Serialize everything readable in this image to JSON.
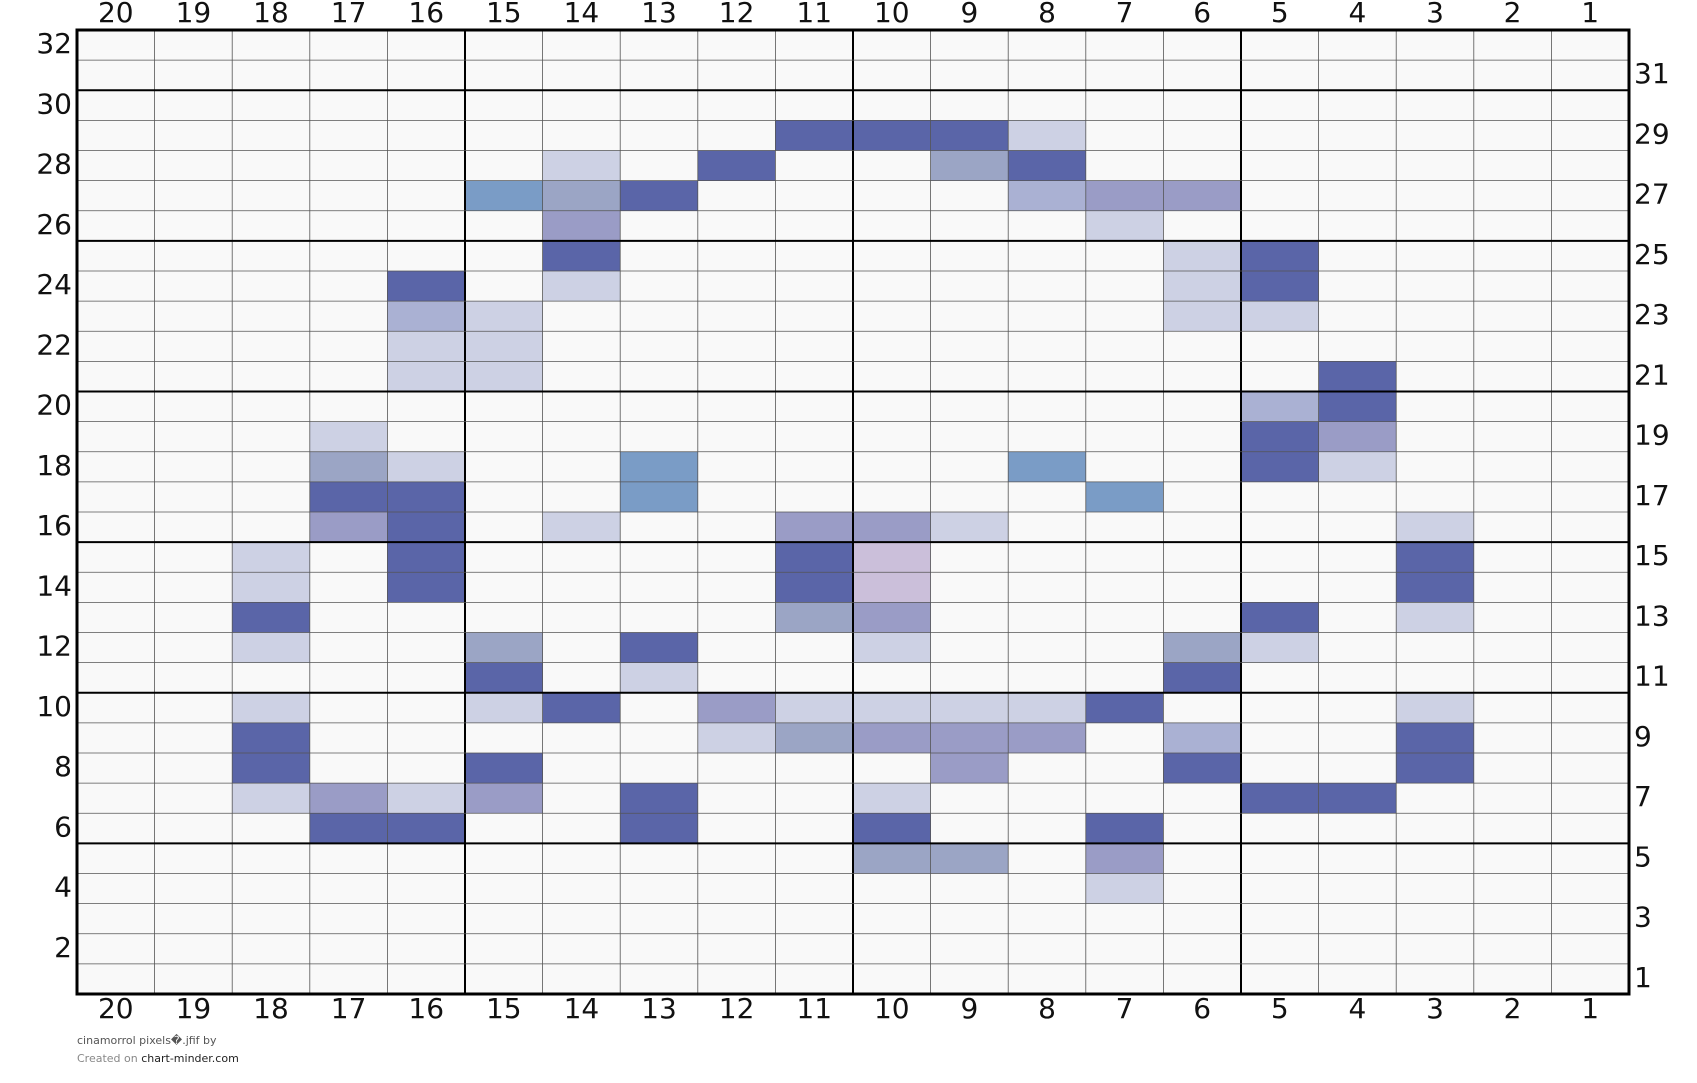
{
  "grid": {
    "columns": [
      20,
      19,
      18,
      17,
      16,
      15,
      14,
      13,
      12,
      11,
      10,
      9,
      8,
      7,
      6,
      5,
      4,
      3,
      2,
      1
    ],
    "rows": [
      32,
      31,
      30,
      29,
      28,
      27,
      26,
      25,
      24,
      23,
      22,
      21,
      20,
      19,
      18,
      17,
      16,
      15,
      14,
      13,
      12,
      11,
      10,
      9,
      8,
      7,
      6,
      5,
      4,
      3,
      2,
      1
    ],
    "left_row_labels": [
      32,
      30,
      28,
      26,
      24,
      22,
      20,
      18,
      16,
      14,
      12,
      10,
      8,
      6,
      4,
      2
    ],
    "right_row_labels": [
      31,
      29,
      27,
      25,
      23,
      21,
      19,
      17,
      15,
      13,
      11,
      9,
      7,
      5,
      3,
      1
    ],
    "background": "#f9f9f9",
    "cells": [
      {
        "row": 29,
        "column": 11,
        "color": "#5a65a8"
      },
      {
        "row": 29,
        "column": 10,
        "color": "#5a65a8"
      },
      {
        "row": 29,
        "column": 9,
        "color": "#5a65a8"
      },
      {
        "row": 29,
        "column": 8,
        "color": "#cdd1e4"
      },
      {
        "row": 28,
        "column": 14,
        "color": "#cdd1e4"
      },
      {
        "row": 28,
        "column": 12,
        "color": "#5a65a8"
      },
      {
        "row": 28,
        "column": 9,
        "color": "#9ba5c5"
      },
      {
        "row": 28,
        "column": 8,
        "color": "#5a65a8"
      },
      {
        "row": 27,
        "column": 15,
        "color": "#7a9cc6"
      },
      {
        "row": 27,
        "column": 14,
        "color": "#9ba5c5"
      },
      {
        "row": 27,
        "column": 13,
        "color": "#5a65a8"
      },
      {
        "row": 27,
        "column": 8,
        "color": "#aab1d3"
      },
      {
        "row": 27,
        "column": 7,
        "color": "#9a9cc6"
      },
      {
        "row": 27,
        "column": 6,
        "color": "#9a9cc6"
      },
      {
        "row": 26,
        "column": 14,
        "color": "#9a9cc6"
      },
      {
        "row": 26,
        "column": 7,
        "color": "#cdd1e4"
      },
      {
        "row": 25,
        "column": 14,
        "color": "#5a65a8"
      },
      {
        "row": 25,
        "column": 6,
        "color": "#cdd1e4"
      },
      {
        "row": 25,
        "column": 5,
        "color": "#5a65a8"
      },
      {
        "row": 24,
        "column": 16,
        "color": "#5a65a8"
      },
      {
        "row": 24,
        "column": 14,
        "color": "#cdd1e4"
      },
      {
        "row": 24,
        "column": 6,
        "color": "#cdd1e4"
      },
      {
        "row": 24,
        "column": 5,
        "color": "#5a65a8"
      },
      {
        "row": 23,
        "column": 16,
        "color": "#aab1d3"
      },
      {
        "row": 23,
        "column": 15,
        "color": "#cdd1e4"
      },
      {
        "row": 23,
        "column": 6,
        "color": "#cdd1e4"
      },
      {
        "row": 23,
        "column": 5,
        "color": "#cdd1e4"
      },
      {
        "row": 22,
        "column": 16,
        "color": "#cdd1e4"
      },
      {
        "row": 22,
        "column": 15,
        "color": "#cdd1e4"
      },
      {
        "row": 21,
        "column": 16,
        "color": "#cdd1e4"
      },
      {
        "row": 21,
        "column": 15,
        "color": "#cdd1e4"
      },
      {
        "row": 21,
        "column": 4,
        "color": "#5a65a8"
      },
      {
        "row": 20,
        "column": 5,
        "color": "#aab1d3"
      },
      {
        "row": 20,
        "column": 4,
        "color": "#5a65a8"
      },
      {
        "row": 19,
        "column": 17,
        "color": "#cdd1e4"
      },
      {
        "row": 19,
        "column": 5,
        "color": "#5a65a8"
      },
      {
        "row": 19,
        "column": 4,
        "color": "#9a9cc6"
      },
      {
        "row": 18,
        "column": 17,
        "color": "#9ba5c5"
      },
      {
        "row": 18,
        "column": 16,
        "color": "#cdd1e4"
      },
      {
        "row": 18,
        "column": 13,
        "color": "#7a9cc6"
      },
      {
        "row": 18,
        "column": 8,
        "color": "#7a9cc6"
      },
      {
        "row": 18,
        "column": 5,
        "color": "#5a65a8"
      },
      {
        "row": 18,
        "column": 4,
        "color": "#cdd1e4"
      },
      {
        "row": 17,
        "column": 17,
        "color": "#5a65a8"
      },
      {
        "row": 17,
        "column": 16,
        "color": "#5a65a8"
      },
      {
        "row": 17,
        "column": 13,
        "color": "#7a9cc6"
      },
      {
        "row": 17,
        "column": 7,
        "color": "#7a9cc6"
      },
      {
        "row": 16,
        "column": 17,
        "color": "#9a9cc6"
      },
      {
        "row": 16,
        "column": 16,
        "color": "#5a65a8"
      },
      {
        "row": 16,
        "column": 14,
        "color": "#cdd1e4"
      },
      {
        "row": 16,
        "column": 11,
        "color": "#9a9cc6"
      },
      {
        "row": 16,
        "column": 10,
        "color": "#9a9cc6"
      },
      {
        "row": 16,
        "column": 9,
        "color": "#cdd1e4"
      },
      {
        "row": 16,
        "column": 3,
        "color": "#cdd1e4"
      },
      {
        "row": 15,
        "column": 18,
        "color": "#cdd1e4"
      },
      {
        "row": 15,
        "column": 16,
        "color": "#5a65a8"
      },
      {
        "row": 15,
        "column": 11,
        "color": "#5a65a8"
      },
      {
        "row": 15,
        "column": 10,
        "color": "#cbbfda"
      },
      {
        "row": 15,
        "column": 3,
        "color": "#5a65a8"
      },
      {
        "row": 14,
        "column": 18,
        "color": "#cdd1e4"
      },
      {
        "row": 14,
        "column": 16,
        "color": "#5a65a8"
      },
      {
        "row": 14,
        "column": 11,
        "color": "#5a65a8"
      },
      {
        "row": 14,
        "column": 10,
        "color": "#cbbfda"
      },
      {
        "row": 14,
        "column": 3,
        "color": "#5a65a8"
      },
      {
        "row": 13,
        "column": 18,
        "color": "#5a65a8"
      },
      {
        "row": 13,
        "column": 11,
        "color": "#9ba5c5"
      },
      {
        "row": 13,
        "column": 10,
        "color": "#9a9cc6"
      },
      {
        "row": 13,
        "column": 5,
        "color": "#5a65a8"
      },
      {
        "row": 13,
        "column": 3,
        "color": "#cdd1e4"
      },
      {
        "row": 12,
        "column": 18,
        "color": "#cdd1e4"
      },
      {
        "row": 12,
        "column": 15,
        "color": "#9ba5c5"
      },
      {
        "row": 12,
        "column": 13,
        "color": "#5a65a8"
      },
      {
        "row": 12,
        "column": 10,
        "color": "#cdd1e4"
      },
      {
        "row": 12,
        "column": 6,
        "color": "#9ba5c5"
      },
      {
        "row": 12,
        "column": 5,
        "color": "#cdd1e4"
      },
      {
        "row": 11,
        "column": 15,
        "color": "#5a65a8"
      },
      {
        "row": 11,
        "column": 13,
        "color": "#cdd1e4"
      },
      {
        "row": 11,
        "column": 6,
        "color": "#5a65a8"
      },
      {
        "row": 10,
        "column": 18,
        "color": "#cdd1e4"
      },
      {
        "row": 10,
        "column": 15,
        "color": "#cdd1e4"
      },
      {
        "row": 10,
        "column": 14,
        "color": "#5a65a8"
      },
      {
        "row": 10,
        "column": 12,
        "color": "#9a9cc6"
      },
      {
        "row": 10,
        "column": 11,
        "color": "#cdd1e4"
      },
      {
        "row": 10,
        "column": 10,
        "color": "#cdd1e4"
      },
      {
        "row": 10,
        "column": 9,
        "color": "#cdd1e4"
      },
      {
        "row": 10,
        "column": 8,
        "color": "#cdd1e4"
      },
      {
        "row": 10,
        "column": 7,
        "color": "#5a65a8"
      },
      {
        "row": 10,
        "column": 3,
        "color": "#cdd1e4"
      },
      {
        "row": 9,
        "column": 18,
        "color": "#5a65a8"
      },
      {
        "row": 9,
        "column": 12,
        "color": "#cdd1e4"
      },
      {
        "row": 9,
        "column": 11,
        "color": "#9ba5c5"
      },
      {
        "row": 9,
        "column": 10,
        "color": "#9a9cc6"
      },
      {
        "row": 9,
        "column": 9,
        "color": "#9a9cc6"
      },
      {
        "row": 9,
        "column": 8,
        "color": "#9a9cc6"
      },
      {
        "row": 9,
        "column": 6,
        "color": "#aab1d3"
      },
      {
        "row": 9,
        "column": 3,
        "color": "#5a65a8"
      },
      {
        "row": 8,
        "column": 18,
        "color": "#5a65a8"
      },
      {
        "row": 8,
        "column": 15,
        "color": "#5a65a8"
      },
      {
        "row": 8,
        "column": 9,
        "color": "#9a9cc6"
      },
      {
        "row": 8,
        "column": 6,
        "color": "#5a65a8"
      },
      {
        "row": 8,
        "column": 3,
        "color": "#5a65a8"
      },
      {
        "row": 7,
        "column": 18,
        "color": "#cdd1e4"
      },
      {
        "row": 7,
        "column": 17,
        "color": "#9a9cc6"
      },
      {
        "row": 7,
        "column": 16,
        "color": "#cdd1e4"
      },
      {
        "row": 7,
        "column": 15,
        "color": "#9a9cc6"
      },
      {
        "row": 7,
        "column": 13,
        "color": "#5a65a8"
      },
      {
        "row": 7,
        "column": 10,
        "color": "#cdd1e4"
      },
      {
        "row": 7,
        "column": 5,
        "color": "#5a65a8"
      },
      {
        "row": 7,
        "column": 4,
        "color": "#5a65a8"
      },
      {
        "row": 6,
        "column": 17,
        "color": "#5a65a8"
      },
      {
        "row": 6,
        "column": 16,
        "color": "#5a65a8"
      },
      {
        "row": 6,
        "column": 13,
        "color": "#5a65a8"
      },
      {
        "row": 6,
        "column": 10,
        "color": "#5a65a8"
      },
      {
        "row": 6,
        "column": 7,
        "color": "#5a65a8"
      },
      {
        "row": 5,
        "column": 10,
        "color": "#9ba5c5"
      },
      {
        "row": 5,
        "column": 9,
        "color": "#9ba5c5"
      },
      {
        "row": 5,
        "column": 7,
        "color": "#9a9cc6"
      },
      {
        "row": 4,
        "column": 7,
        "color": "#cdd1e4"
      }
    ]
  },
  "footer": {
    "file": "cinamorrol pixels�.jfif by",
    "created_on": "Created on",
    "site": "chart-minder.com"
  }
}
